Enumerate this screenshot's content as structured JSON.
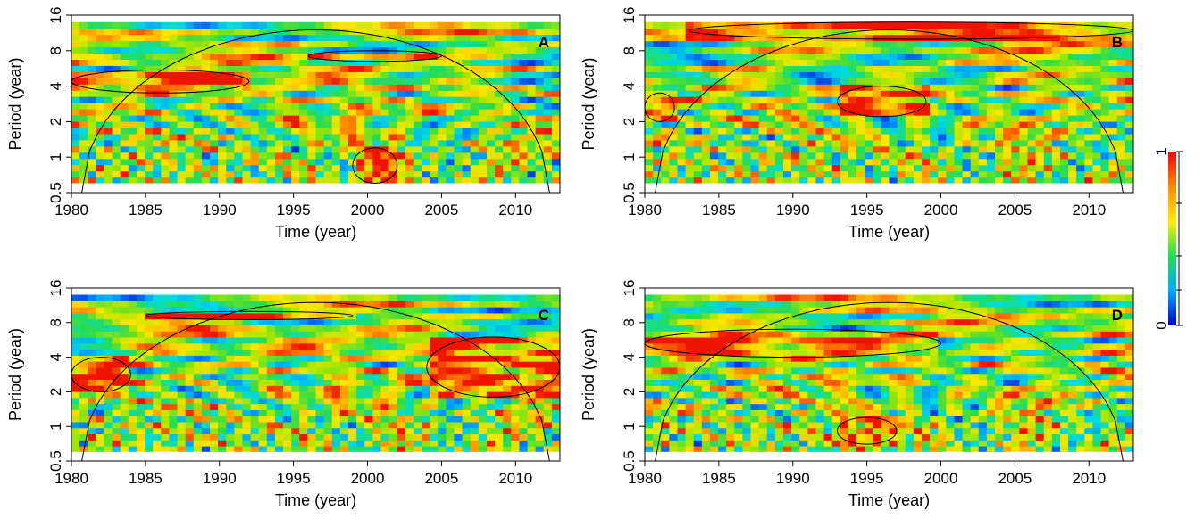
{
  "chart_data": [
    {
      "type": "heatmap",
      "panel_label": "A",
      "xlabel": "Time (year)",
      "ylabel": "Period (year)",
      "xlim": [
        1980,
        2013
      ],
      "ylim": [
        0.5,
        16
      ],
      "y_scale": "log2",
      "x_ticks": [
        1980,
        1985,
        1990,
        1995,
        2000,
        2005,
        2010
      ],
      "y_ticks": [
        "0.5",
        "1",
        "2",
        "4",
        "8",
        "16"
      ],
      "cone_of_influence_apex": [
        1996.5,
        12
      ],
      "high_power_regions": [
        {
          "x_range": [
            1980,
            1992
          ],
          "period_range": [
            3.5,
            5.5
          ]
        },
        {
          "x_range": [
            1996,
            2005
          ],
          "period_range": [
            6.5,
            8
          ]
        },
        {
          "x_range": [
            1999,
            2002
          ],
          "period_range": [
            0.6,
            1.2
          ]
        }
      ]
    },
    {
      "type": "heatmap",
      "panel_label": "B",
      "xlabel": "Time (year)",
      "ylabel": "Period (year)",
      "xlim": [
        1980,
        2013
      ],
      "ylim": [
        0.5,
        16
      ],
      "y_scale": "log2",
      "x_ticks": [
        1980,
        1985,
        1990,
        1995,
        2000,
        2005,
        2010
      ],
      "y_ticks": [
        "0.5",
        "1",
        "2",
        "4",
        "8",
        "16"
      ],
      "cone_of_influence_apex": [
        1996.5,
        12
      ],
      "high_power_regions": [
        {
          "x_range": [
            1983,
            2013
          ],
          "period_range": [
            10,
            14
          ]
        },
        {
          "x_range": [
            1993,
            1999
          ],
          "period_range": [
            2.2,
            4
          ]
        },
        {
          "x_range": [
            1980,
            1982
          ],
          "period_range": [
            2,
            3.5
          ]
        }
      ]
    },
    {
      "type": "heatmap",
      "panel_label": "C",
      "xlabel": "Time (year)",
      "ylabel": "Period (year)",
      "xlim": [
        1980,
        2013
      ],
      "ylim": [
        0.5,
        16
      ],
      "y_scale": "log2",
      "x_ticks": [
        1980,
        1985,
        1990,
        1995,
        2000,
        2005,
        2010
      ],
      "y_ticks": [
        "0.5",
        "1",
        "2",
        "4",
        "8",
        "16"
      ],
      "cone_of_influence_apex": [
        1996.5,
        12
      ],
      "high_power_regions": [
        {
          "x_range": [
            1985,
            1999
          ],
          "period_range": [
            8.5,
            10
          ]
        },
        {
          "x_range": [
            1980,
            1984
          ],
          "period_range": [
            2,
            4
          ]
        },
        {
          "x_range": [
            2004,
            2013
          ],
          "period_range": [
            1.8,
            6
          ]
        }
      ]
    },
    {
      "type": "heatmap",
      "panel_label": "D",
      "xlabel": "Time (year)",
      "ylabel": "Period (year)",
      "xlim": [
        1980,
        2013
      ],
      "ylim": [
        0.5,
        16
      ],
      "y_scale": "log2",
      "x_ticks": [
        1980,
        1985,
        1990,
        1995,
        2000,
        2005,
        2010
      ],
      "y_ticks": [
        "0.5",
        "1",
        "2",
        "4",
        "8",
        "16"
      ],
      "cone_of_influence_apex": [
        1996.5,
        12
      ],
      "high_power_regions": [
        {
          "x_range": [
            1980,
            2000
          ],
          "period_range": [
            4,
            7
          ]
        },
        {
          "x_range": [
            1993,
            1997
          ],
          "period_range": [
            0.7,
            1.2
          ]
        }
      ]
    }
  ],
  "colorbar": {
    "tick_labels": [
      "0",
      "1"
    ],
    "range": [
      0,
      1
    ],
    "colors": [
      "#0000cc",
      "#00aaff",
      "#22dd55",
      "#ffee00",
      "#ff8800",
      "#ee0000"
    ]
  }
}
